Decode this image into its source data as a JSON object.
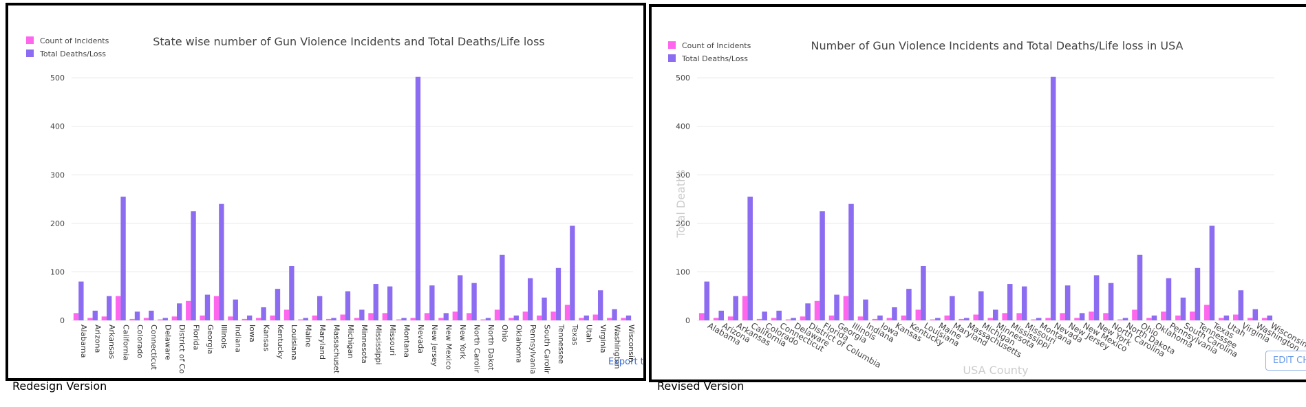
{
  "page": {
    "left_caption": "Redesign Version",
    "right_caption": "Revised Version",
    "export_link": "Export t",
    "edit_button": "EDIT CH"
  },
  "colors": {
    "incidents": "#ff66ee",
    "deaths": "#8c6cf0",
    "grid": "#e8e8e8"
  },
  "chart_data": [
    {
      "type": "bar",
      "title": "State wise number of Gun Violence Incidents and Total Deaths/Life loss",
      "xlabel": "",
      "ylabel": "",
      "ylim": [
        0,
        530
      ],
      "yticks": [
        0,
        100,
        200,
        300,
        400,
        500
      ],
      "legend_position": "top-left",
      "grid": true,
      "categories": [
        "Alabama",
        "Arizona",
        "Arkansas",
        "California",
        "Colorado",
        "Connecticut",
        "Delaware",
        "District of Co",
        "Florida",
        "Georgia",
        "Illinois",
        "Indiana",
        "Iowa",
        "Kansas",
        "Kentucky",
        "Louisiana",
        "Maine",
        "Maryland",
        "Massachuset",
        "Michigan",
        "Minnesota",
        "Mississippi",
        "Missouri",
        "Montana",
        "Nevada",
        "New Jersey",
        "New Mexico",
        "New York",
        "North Carolir",
        "North Dakot",
        "Ohio",
        "Oklahoma",
        "Pennsylvania",
        "South Carolir",
        "Tennessee",
        "Texas",
        "Utah",
        "Virginia",
        "Washington",
        "Wisconsin"
      ],
      "series": [
        {
          "name": "Count of Incidents",
          "values": [
            15,
            5,
            8,
            50,
            3,
            5,
            2,
            8,
            40,
            10,
            50,
            8,
            3,
            5,
            10,
            22,
            2,
            10,
            3,
            12,
            5,
            15,
            15,
            2,
            5,
            15,
            5,
            18,
            15,
            2,
            22,
            5,
            18,
            10,
            18,
            32,
            5,
            12,
            5,
            5
          ]
        },
        {
          "name": "Total Deaths/Loss",
          "values": [
            80,
            20,
            50,
            255,
            18,
            20,
            5,
            35,
            225,
            53,
            240,
            43,
            10,
            27,
            65,
            112,
            5,
            50,
            5,
            60,
            22,
            75,
            70,
            5,
            502,
            72,
            15,
            93,
            77,
            5,
            135,
            10,
            87,
            47,
            108,
            195,
            10,
            62,
            23,
            10
          ]
        }
      ]
    },
    {
      "type": "bar",
      "title": "Number of Gun Violence Incidents and Total Deaths/Life loss in USA",
      "xlabel": "USA County",
      "ylabel": "Total Deaths",
      "ylim": [
        0,
        530
      ],
      "yticks": [
        0,
        100,
        200,
        300,
        400,
        500
      ],
      "legend_position": "top-left",
      "grid": true,
      "categories": [
        "Alabama",
        "Arizona",
        "Arkansas",
        "California",
        "Colorado",
        "Connecticut",
        "Delaware",
        "District of Columbia",
        "Florida",
        "Georgia",
        "Illinois",
        "Indiana",
        "Iowa",
        "Kansas",
        "Kentucky",
        "Louisiana",
        "Maine",
        "Maryland",
        "Massachusetts",
        "Michigan",
        "Minnesota",
        "Mississippi",
        "Missouri",
        "Montana",
        "Nevada",
        "New Jersey",
        "New Mexico",
        "New York",
        "North Carolina",
        "North Dakota",
        "Ohio",
        "Oklahoma",
        "Pennsylvania",
        "South Carolina",
        "Tennessee",
        "Texas",
        "Utah",
        "Virginia",
        "Washington",
        "Wisconsin"
      ],
      "series": [
        {
          "name": "Count of Incidents",
          "values": [
            15,
            5,
            8,
            50,
            3,
            5,
            2,
            8,
            40,
            10,
            50,
            8,
            3,
            5,
            10,
            22,
            2,
            10,
            3,
            12,
            5,
            15,
            15,
            2,
            5,
            15,
            5,
            18,
            15,
            2,
            22,
            5,
            18,
            10,
            18,
            32,
            5,
            12,
            5,
            5
          ]
        },
        {
          "name": "Total Deaths/Loss",
          "values": [
            80,
            20,
            50,
            255,
            18,
            20,
            5,
            35,
            225,
            53,
            240,
            43,
            10,
            27,
            65,
            112,
            5,
            50,
            5,
            60,
            22,
            75,
            70,
            5,
            502,
            72,
            15,
            93,
            77,
            5,
            135,
            10,
            87,
            47,
            108,
            195,
            10,
            62,
            23,
            10
          ]
        }
      ]
    }
  ]
}
